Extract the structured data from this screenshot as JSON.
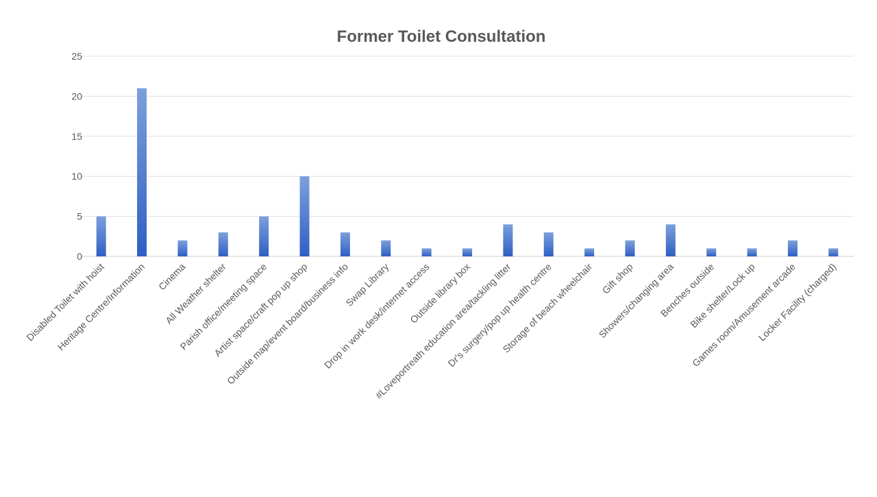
{
  "chart_data": {
    "type": "bar",
    "title": "Former Toilet Consultation",
    "xlabel": "",
    "ylabel": "",
    "ylim": [
      0,
      25
    ],
    "yticks": [
      0,
      5,
      10,
      15,
      20,
      25
    ],
    "grid": true,
    "legend": "none",
    "bar_color_top": "#7da0db",
    "bar_color_bottom": "#2f5fc4",
    "categories": [
      "Disabled Toilet with hoist",
      "Heritage Centre/Information",
      "Cinema",
      "All Weather shelter",
      "Parish office/meeting space",
      "Artist space/craft pop up shop",
      "Outside map/event board/business info",
      "Swap Library",
      "Drop in work desk/internet access",
      "Outside library box",
      "#Loveportreath education area/tackling litter",
      "Dr's surgery/pop up health centre",
      "Storage of beach wheelchair",
      "Gift shop",
      "Showers/changing area",
      "Benches outside",
      "Bike shelter/Lock up",
      "Games room/Amusement arcade",
      "Locker Facility (charged)"
    ],
    "values": [
      5,
      21,
      2,
      3,
      5,
      10,
      3,
      2,
      1,
      1,
      4,
      3,
      1,
      2,
      4,
      1,
      1,
      2,
      1
    ]
  }
}
